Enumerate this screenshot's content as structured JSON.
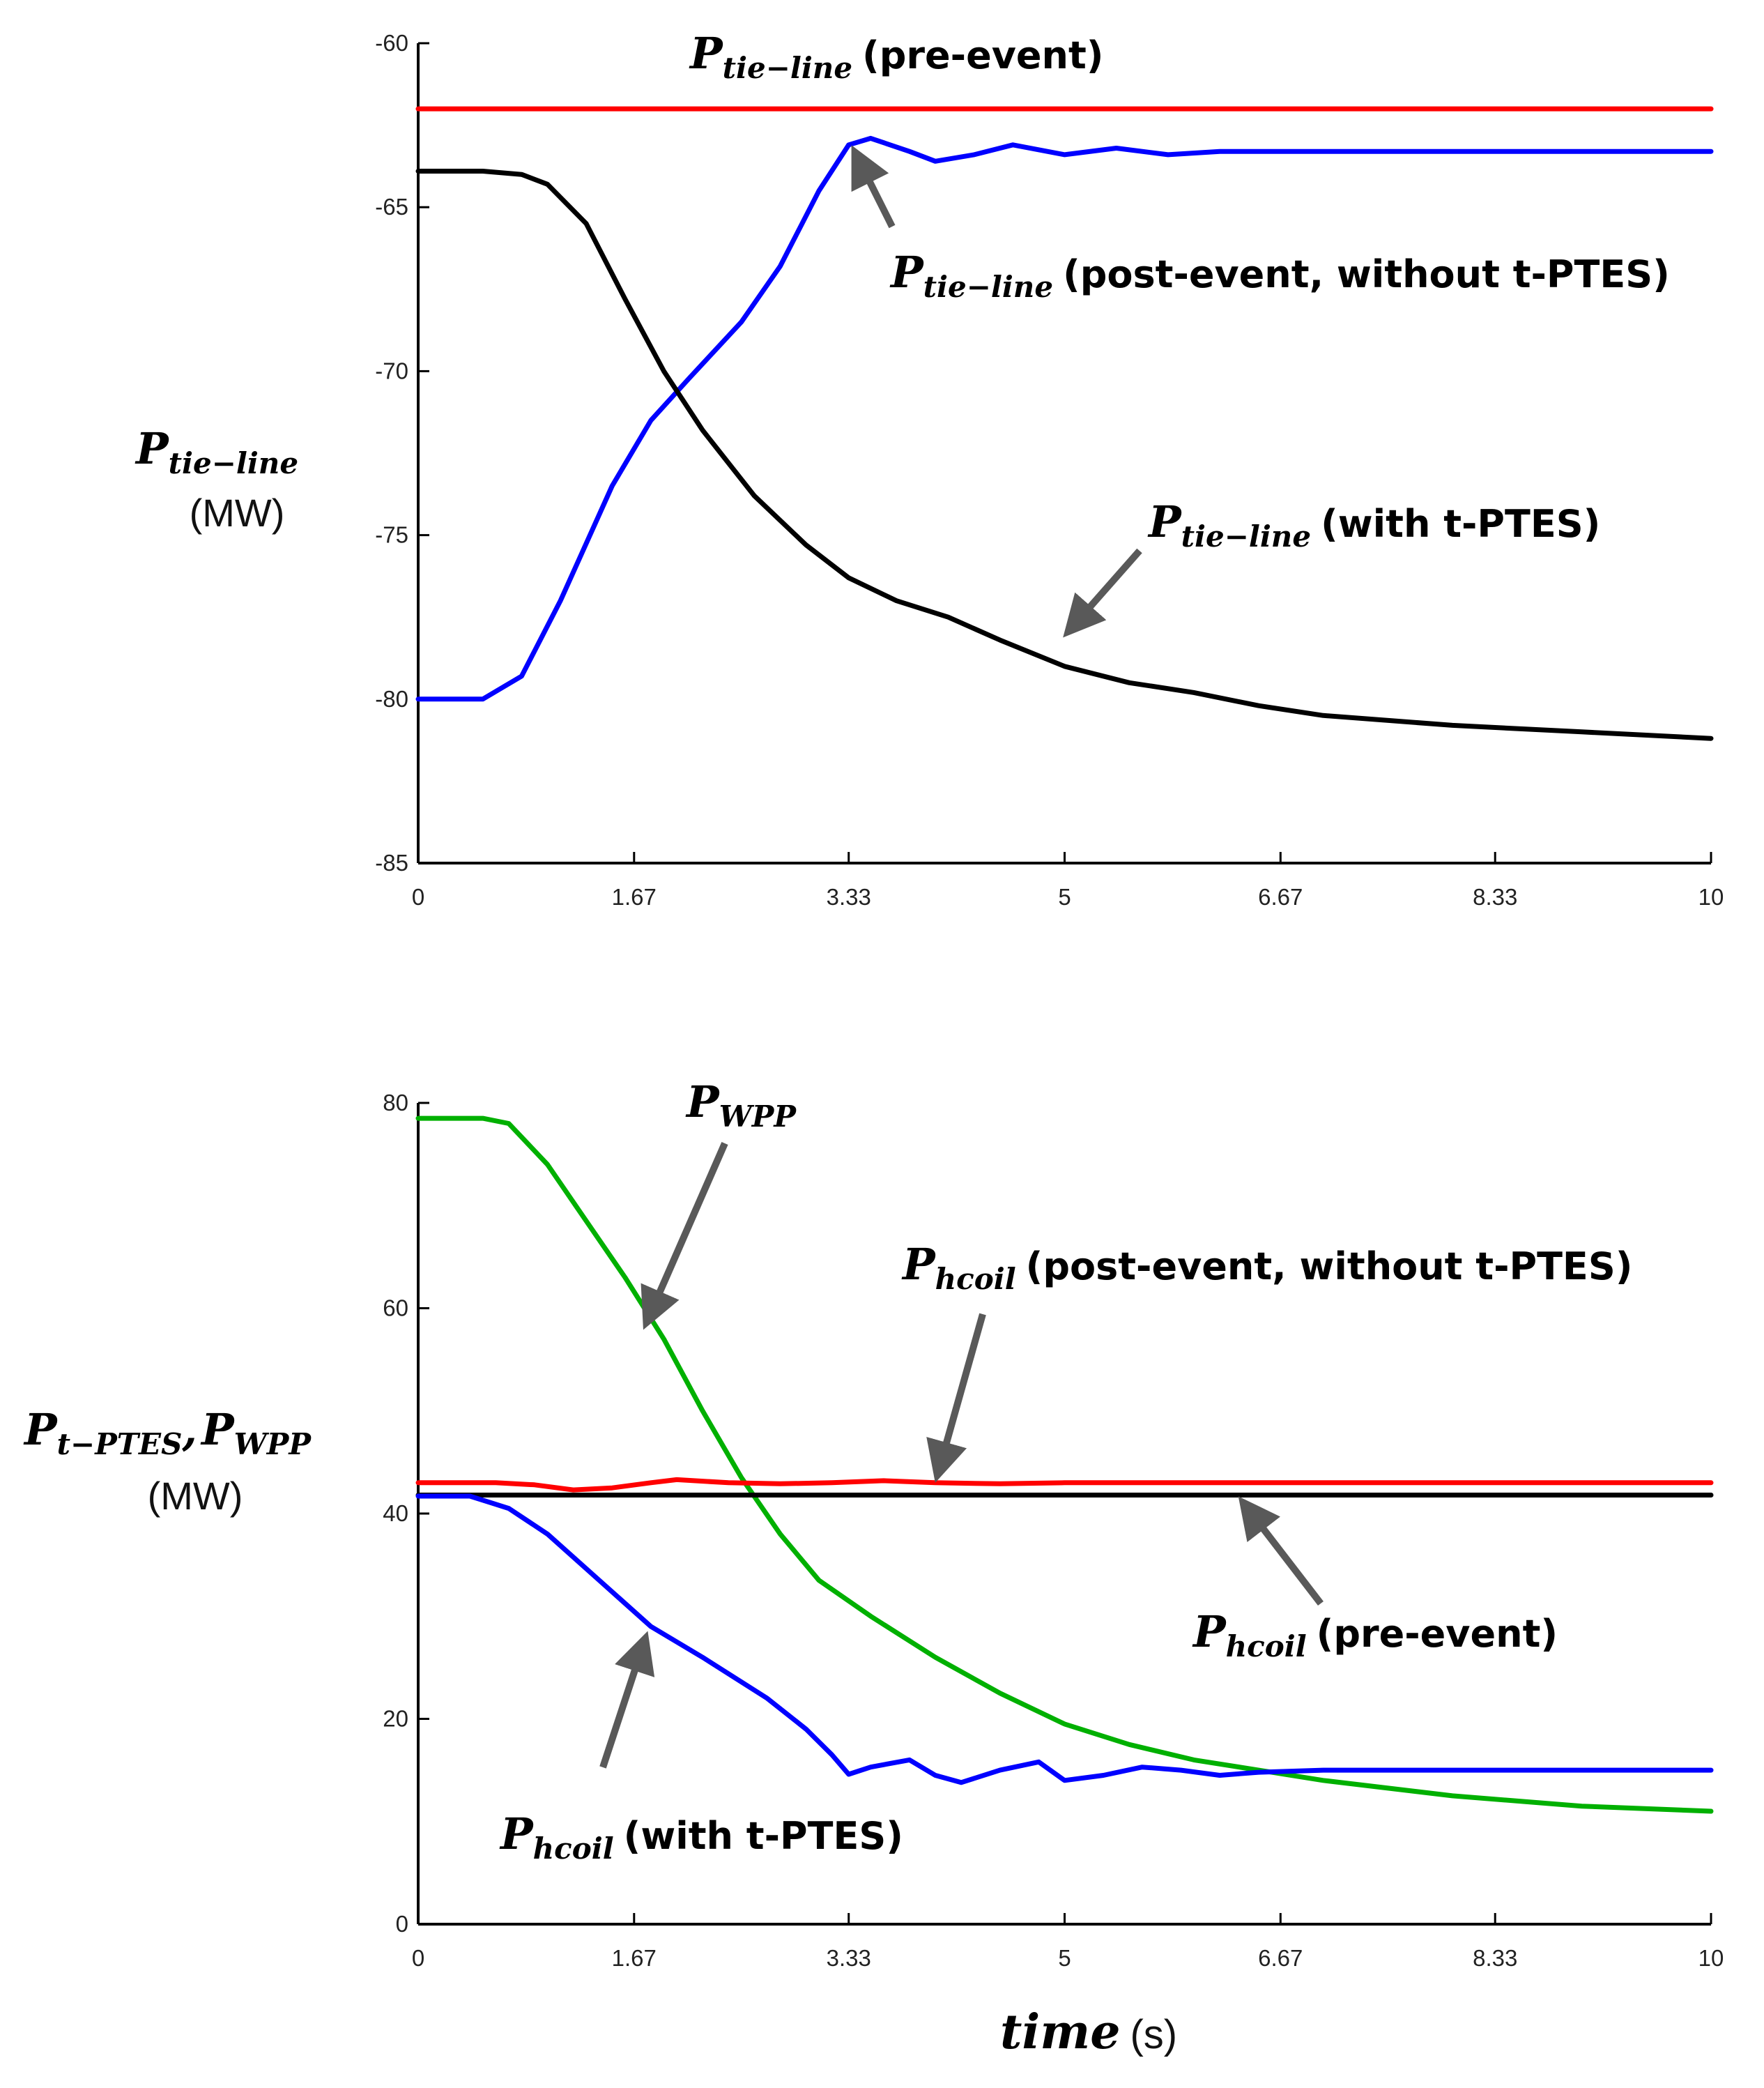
{
  "chart_data": [
    {
      "type": "line",
      "title": "",
      "xlabel": "",
      "ylabel": {
        "symbol": "P",
        "sub": "tie−line",
        "unit": "(MW)"
      },
      "xlim": [
        0,
        10
      ],
      "ylim": [
        -85,
        -60
      ],
      "xticks": [
        0,
        1.67,
        3.33,
        5,
        6.67,
        8.33,
        10
      ],
      "xtick_labels": [
        "0",
        "1.67",
        "3.33",
        "5",
        "6.67",
        "8.33",
        "10"
      ],
      "yticks": [
        -60,
        -65,
        -70,
        -75,
        -80,
        -85
      ],
      "ytick_labels": [
        "-60",
        "-65",
        "-70",
        "-75",
        "-80",
        "-85"
      ],
      "series": [
        {
          "name": "P_tie-line (pre-event)",
          "color": "#ff0000",
          "x": [
            0,
            10
          ],
          "y": [
            -62,
            -62
          ]
        },
        {
          "name": "P_tie-line (post-event, without t-PTES)",
          "color": "#0000ff",
          "x": [
            0,
            0.5,
            0.8,
            1.1,
            1.5,
            1.8,
            2.1,
            2.5,
            2.8,
            3.1,
            3.33,
            3.5,
            3.8,
            4.0,
            4.3,
            4.6,
            5.0,
            5.4,
            5.8,
            6.2,
            6.6,
            7.0,
            8.0,
            9.0,
            10
          ],
          "y": [
            -80,
            -80,
            -79.3,
            -77,
            -73.5,
            -71.5,
            -70.2,
            -68.5,
            -66.8,
            -64.5,
            -63.1,
            -62.9,
            -63.3,
            -63.6,
            -63.4,
            -63.1,
            -63.4,
            -63.2,
            -63.4,
            -63.3,
            -63.3,
            -63.3,
            -63.3,
            -63.3,
            -63.3
          ]
        },
        {
          "name": "P_tie-line (with t-PTES)",
          "color": "#000000",
          "x": [
            0,
            0.5,
            0.8,
            1.0,
            1.3,
            1.6,
            1.9,
            2.2,
            2.6,
            3.0,
            3.33,
            3.7,
            4.1,
            4.5,
            5.0,
            5.5,
            6.0,
            6.5,
            7.0,
            8.0,
            9.0,
            10
          ],
          "y": [
            -63.9,
            -63.9,
            -64.0,
            -64.3,
            -65.5,
            -67.8,
            -70.0,
            -71.8,
            -73.8,
            -75.3,
            -76.3,
            -77.0,
            -77.5,
            -78.2,
            -79.0,
            -79.5,
            -79.8,
            -80.2,
            -80.5,
            -80.8,
            -81.0,
            -81.2
          ]
        }
      ],
      "annotations": [
        {
          "symbol": "P",
          "sub": "tie−line",
          "text": "(pre-event)"
        },
        {
          "symbol": "P",
          "sub": "tie−line",
          "text": "(post-event, without t-PTES)"
        },
        {
          "symbol": "P",
          "sub": "tie−line",
          "text": "(with t-PTES)"
        }
      ]
    },
    {
      "type": "line",
      "title": "",
      "xlabel": {
        "symbol": "time",
        "unit": "(s)"
      },
      "ylabel": {
        "symbol1": "P",
        "sub1": "t−PTES",
        "sep": ",",
        "symbol2": "P",
        "sub2": "WPP",
        "unit": "(MW)"
      },
      "xlim": [
        0,
        10
      ],
      "ylim": [
        0,
        80
      ],
      "xticks": [
        0,
        1.67,
        3.33,
        5,
        6.67,
        8.33,
        10
      ],
      "xtick_labels": [
        "0",
        "1.67",
        "3.33",
        "5",
        "6.67",
        "8.33",
        "10"
      ],
      "yticks": [
        80,
        60,
        40,
        20,
        0
      ],
      "ytick_labels": [
        "80",
        "60",
        "40",
        "20",
        "0"
      ],
      "series": [
        {
          "name": "P_WPP",
          "color": "#00b000",
          "x": [
            0,
            0.5,
            0.7,
            1.0,
            1.3,
            1.6,
            1.9,
            2.2,
            2.5,
            2.8,
            3.1,
            3.5,
            4.0,
            4.5,
            5.0,
            5.5,
            6.0,
            6.5,
            7.0,
            8.0,
            9.0,
            10
          ],
          "y": [
            78.5,
            78.5,
            78,
            74,
            68.5,
            63,
            57,
            50,
            43.5,
            38,
            33.5,
            30,
            26,
            22.5,
            19.5,
            17.5,
            16,
            15,
            14,
            12.5,
            11.5,
            11
          ]
        },
        {
          "name": "P_hcoil (post-event, without t-PTES)",
          "color": "#ff0000",
          "x": [
            0,
            0.6,
            0.9,
            1.2,
            1.5,
            1.8,
            2.0,
            2.4,
            2.8,
            3.2,
            3.6,
            4.0,
            4.5,
            5.0,
            6.0,
            7.0,
            8.0,
            9.0,
            10
          ],
          "y": [
            43,
            43,
            42.8,
            42.3,
            42.5,
            43.0,
            43.3,
            43.0,
            42.9,
            43.0,
            43.2,
            43.0,
            42.9,
            43.0,
            43.0,
            43.0,
            43.0,
            43.0,
            43.0
          ]
        },
        {
          "name": "P_hcoil (pre-event)",
          "color": "#000000",
          "x": [
            0,
            10
          ],
          "y": [
            41.8,
            41.8
          ]
        },
        {
          "name": "P_hcoil (with t-PTES)",
          "color": "#0000ff",
          "x": [
            0,
            0.4,
            0.7,
            1.0,
            1.4,
            1.8,
            2.2,
            2.7,
            3.0,
            3.2,
            3.33,
            3.5,
            3.8,
            4.0,
            4.2,
            4.5,
            4.8,
            5.0,
            5.3,
            5.6,
            5.9,
            6.2,
            6.5,
            7.0,
            8.0,
            9.0,
            10
          ],
          "y": [
            41.7,
            41.7,
            40.5,
            38,
            33.5,
            29,
            26,
            22,
            19,
            16.5,
            14.6,
            15.3,
            16.0,
            14.5,
            13.8,
            15.0,
            15.8,
            14.0,
            14.5,
            15.3,
            15.0,
            14.5,
            14.8,
            15.0,
            15.0,
            15.0,
            15.0
          ]
        }
      ],
      "annotations": [
        {
          "symbol": "P",
          "sub": "WPP",
          "text": ""
        },
        {
          "symbol": "P",
          "sub": "hcoil",
          "text": "(post-event, without t-PTES)"
        },
        {
          "symbol": "P",
          "sub": "hcoil",
          "text": "(pre-event)"
        },
        {
          "symbol": "P",
          "sub": "hcoil",
          "text": "(with t-PTES)"
        }
      ]
    }
  ]
}
